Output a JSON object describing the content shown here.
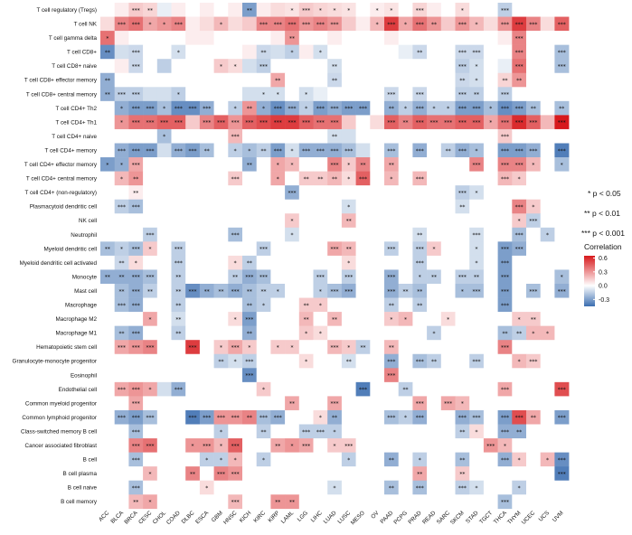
{
  "chart_data": {
    "type": "heatmap",
    "title": "",
    "xlabel": "",
    "ylabel": "",
    "columns": [
      "ACC",
      "BLCA",
      "BRCA",
      "CESC",
      "CHOL",
      "COAD",
      "DLBC",
      "ESCA",
      "GBM",
      "HNSC",
      "KICH",
      "KIRC",
      "KIRP",
      "LAML",
      "LGG",
      "LIHC",
      "LUAD",
      "LUSC",
      "MESO",
      "OV",
      "PAAD",
      "PCPG",
      "PRAD",
      "READ",
      "SARC",
      "SKCM",
      "STAD",
      "TGCT",
      "THCA",
      "THYM",
      "UCEC",
      "UCS",
      "UVM"
    ],
    "rows": [
      "T cell regulatory (Tregs)",
      "T cell NK",
      "T cell gamma delta",
      "T cell CD8+",
      "T cell CD8+ naive",
      "T cell CD8+ effector memory",
      "T cell CD8+ central memory",
      "T cell CD4+ Th2",
      "T cell CD4+ Th1",
      "T cell CD4+ naive",
      "T cell CD4+ memory",
      "T cell CD4+ effector memory",
      "T cell CD4+ central memory",
      "T cell CD4+ (non-regulatory)",
      "Plasmacytoid dendritic cell",
      "NK cell",
      "Neutrophil",
      "Myeloid dendritic cell",
      "Myeloid dendritic cell activated",
      "Monocyte",
      "Mast cell",
      "Macrophage",
      "Macrophage M2",
      "Macrophage M1",
      "Hematopoietic stem cell",
      "Granulocyte-monocyte progenitor",
      "Eosinophil",
      "Endothelial cell",
      "Common myeloid progenitor",
      "Common lymphoid progenitor",
      "Class-switched memory B cell",
      "Cancer associated fibroblast",
      "B cell",
      "B cell plasma",
      "B cell naive",
      "B cell memory"
    ],
    "legend": {
      "title": "Correlation",
      "ticks": [
        "0.6",
        "0.3",
        "0.0",
        "-0.3"
      ],
      "tick_values": [
        0.6,
        0.3,
        0.0,
        -0.3
      ],
      "range": [
        -0.45,
        0.65
      ],
      "colors": {
        "low": "#3b6eb0",
        "mid": "#ffffff",
        "high": "#d7191c"
      },
      "placement": "right"
    },
    "significance": [
      "* p < 0.05",
      "** p < 0.01",
      "*** p < 0.001"
    ],
    "star_symbols": [
      "",
      "*",
      "**",
      "***"
    ],
    "cells": [
      "0.00:0 0.05:0 0.15:3 0.12:2 -0.05:0 0.05:0 0.00:0 0.05:0 0.00:0 0.05:0 -0.30:2 0.05:0 0.10:0 0.08:1 0.15:3 0.12:1 0.10:1 0.08:1 0.00:0 0.05:1 0.08:1 0.00:0 0.12:3 0.05:0 0.00:0 0.10:1 0.00:0 0.00:0 -0.15:3 0.00:0 0.00:0 0.00:0 0.00:0",
      "0.10:0 0.35:3 0.40:3 0.25:1 0.30:1 0.35:3 0.05:0 0.10:0 0.20:1 0.10:0 0.15:0 0.35:3 0.35:3 0.40:3 0.30:3 0.35:3 0.30:3 0.15:0 0.05:0 0.20:1 0.55:3 0.25:1 0.40:3 0.30:2 0.15:0 0.30:3 0.20:1 0.10:0 0.30:3 0.55:3 0.35:3 0.10:0 0.45:3",
      "0.40:1 0.05:0 0.00:0 0.00:0 0.00:0 0.00:0 0.05:0 0.05:0 0.00:0 0.00:0 0.00:0 0.00:0 0.05:0 0.30:2 0.00:0 0.00:0 0.05:0 0.00:0 0.00:0 0.00:0 0.05:0 0.00:0 0.00:0 0.00:0 0.00:0 0.00:0 0.00:0 0.00:0 0.05:0 0.35:3 0.00:0 0.00:0 0.00:0",
      "-0.35:2 -0.10:0 -0.12:3 0.00:0 0.00:0 -0.10:1 0.00:0 0.00:0 0.00:0 0.00:0 0.05:0 -0.12:2 -0.10:0 -0.15:1 0.05:0 -0.10:1 0.00:0 0.00:0 0.00:0 0.00:0 0.00:0 -0.05:0 -0.12:2 0.00:0 0.00:0 -0.12:3 -0.12:3 0.00:0 0.00:0 0.35:3 0.00:0 0.00:0 -0.20:3",
      "0.00:0 0.05:0 -0.12:3 0.00:0 -0.15:0 0.00:0 0.00:0 0.00:0 0.15:1 0.10:1 -0.10:0 -0.15:3 0.00:0 0.00:0 0.00:0 0.00:0 -0.10:2 0.00:0 0.00:0 0.00:0 0.00:0 0.00:0 0.00:0 0.00:0 0.00:0 -0.15:3 -0.10:1 0.00:0 -0.05:0 0.40:3 0.00:0 0.00:0 -0.20:3",
      "-0.25:2 0.00:0 0.00:0 0.00:0 0.00:0 0.00:0 0.00:0 0.00:0 0.00:0 0.00:0 0.00:0 0.00:0 0.25:2 0.00:0 0.00:0 0.00:0 -0.12:2 0.00:0 0.00:0 0.00:0 0.00:0 0.00:0 0.00:0 0.00:0 0.00:0 -0.12:2 -0.10:1 0.00:0 0.12:2 0.30:2 0.00:0 0.00:0 0.00:0",
      "-0.25:2 -0.15:3 -0.15:3 -0.10:0 -0.10:0 -0.15:1 0.00:0 0.00:0 0.00:0 0.00:0 -0.10:0 -0.10:1 -0.10:1 0.00:0 -0.10:1 -0.05:0 0.00:0 0.00:0 0.00:0 0.00:0 -0.12:3 0.00:0 -0.12:3 0.00:0 0.00:0 -0.15:3 -0.15:2 0.00:0 -0.15:3 0.00:0 0.00:0 0.00:0 0.00:0",
      "0.00:0 -0.25:1 -0.30:3 -0.30:3 -0.20:1 -0.35:3 -0.35:3 -0.25:3 0.00:0 -0.15:1 0.30:2 -0.25:1 -0.35:3 -0.25:3 -0.15:1 -0.30:3 -0.25:3 -0.30:3 -0.30:3 0.00:0 -0.25:2 -0.15:1 -0.25:3 -0.15:1 -0.15:1 -0.30:3 -0.30:3 -0.20:1 -0.35:3 -0.30:3 -0.20:2 0.00:0 -0.20:2",
      "0.00:0 0.30:1 0.40:3 0.40:3 0.45:3 0.45:3 0.15:0 0.35:3 0.45:3 0.30:3 0.45:3 0.50:3 0.55:3 0.55:3 0.45:3 0.40:3 0.40:3 0.15:0 0.00:0 0.10:0 0.45:3 0.35:2 0.45:3 0.40:3 0.40:3 0.45:3 0.45:3 0.25:1 0.40:3 0.60:3 0.45:3 0.20:0 0.65:3",
      "0.00:0 0.00:0 0.00:0 0.00:0 -0.20:1 0.00:0 0.00:0 0.00:0 0.00:0 0.20:3 0.00:0 0.00:0 0.00:0 0.00:0 0.00:0 0.00:0 -0.10:2 -0.10:0 0.00:0 0.00:0 0.00:0 0.00:0 0.00:0 0.00:0 0.00:0 0.00:0 0.00:0 0.00:0 0.15:3 0.00:0 0.00:0 0.00:0 0.00:0",
      "0.00:0 -0.25:3 -0.30:3 -0.30:3 -0.10:0 -0.25:3 -0.30:3 -0.20:2 0.00:0 -0.15:1 -0.20:1 -0.15:2 -0.30:3 -0.10:1 -0.25:3 -0.25:3 -0.25:3 -0.20:3 -0.10:0 0.00:0 -0.20:3 0.00:0 -0.25:3 0.00:0 -0.15:2 -0.25:3 -0.20:1 0.00:0 -0.30:3 -0.30:3 -0.25:3 0.00:0 -0.40:3",
      "-0.30:1 -0.25:1 0.25:3 0.00:0 0.00:0 0.00:0 0.00:0 0.00:0 0.00:0 0.00:0 -0.25:2 0.00:0 0.25:1 0.20:1 0.00:0 0.00:0 0.35:3 0.15:1 0.35:2 0.00:0 0.25:2 0.00:0 0.00:0 0.00:0 0.00:0 0.00:0 0.35:3 0.00:0 0.35:3 0.35:3 0.20:1 0.00:0 -0.20:1",
      "0.00:0 0.20:1 0.30:2 0.00:0 0.00:0 0.00:0 0.00:0 0.00:0 0.00:0 0.15:3 0.00:0 0.00:0 0.25:1 0.00:0 0.15:2 0.15:2 0.20:2 0.10:1 0.45:3 0.00:0 0.20:1 0.00:0 0.20:3 0.00:0 0.00:0 0.00:0 0.00:0 0.00:0 0.20:3 0.15:1 0.00:0 0.00:0 0.00:0",
      "0.00:0 0.00:0 0.05:2 0.00:0 0.00:0 0.00:0 0.00:0 0.00:0 0.00:0 0.00:0 0.00:0 0.00:0 0.00:0 -0.25:3 0.00:0 0.00:0 0.00:0 0.00:0 0.00:0 0.00:0 0.00:0 0.00:0 0.00:0 0.00:0 0.00:0 -0.15:3 -0.10:1 0.00:0 0.00:0 0.00:0 0.00:0 0.00:0 0.00:0",
      "0.00:0 -0.15:3 -0.20:3 0.00:0 0.00:0 0.00:0 0.00:0 0.00:0 0.00:0 0.00:0 0.00:0 0.00:0 0.00:0 0.00:0 0.00:0 0.00:0 0.00:0 -0.10:1 0.00:0 0.00:0 0.00:0 0.00:0 0.00:0 0.00:0 0.00:0 -0.10:2 0.00:0 0.00:0 0.00:0 0.35:3 0.15:1 0.00:0 0.00:0",
      "0.00:0 0.00:0 0.00:0 0.00:0 0.00:0 0.00:0 0.00:0 0.00:0 0.00:0 0.00:0 0.00:0 0.00:0 0.00:0 0.15:1 0.00:0 0.00:0 0.00:0 0.20:2 0.00:0 0.00:0 0.00:0 0.00:0 0.00:0 0.00:0 0.00:0 0.00:0 0.00:0 0.00:0 0.00:0 0.15:1 -0.15:3 0.00:0 0.00:0",
      "0.00:0 0.00:0 0.00:0 -0.15:3 0.00:0 0.00:0 0.00:0 0.00:0 0.00:0 -0.20:3 0.00:0 0.00:0 0.00:0 -0.10:1 0.00:0 0.00:0 0.00:0 0.00:0 0.00:0 0.00:0 0.00:0 0.00:0 -0.10:2 0.00:0 0.00:0 0.00:0 -0.10:3 0.00:0 0.00:0 -0.20:3 0.00:0 -0.15:1 0.00:0",
      "-0.20:2 -0.15:1 -0.20:3 0.15:1 0.00:0 -0.15:3 0.00:0 0.00:0 0.00:0 0.00:0 0.00:0 -0.15:3 0.00:0 0.00:0 0.00:0 0.00:0 0.25:3 0.20:2 0.00:0 0.00:0 -0.15:3 0.00:0 -0.15:3 0.15:1 0.00:0 0.00:0 -0.10:1 0.00:0 -0.30:3 -0.25:3 0.00:0 0.00:0 0.00:0",
      "0.00:0 -0.12:2 0.10:1 0.00:0 0.00:0 -0.15:3 0.00:0 0.00:0 0.00:0 0.10:1 -0.15:2 0.00:0 0.00:0 0.00:0 0.00:0 0.00:0 0.00:0 0.10:1 0.00:0 0.00:0 0.00:0 0.00:0 -0.15:3 0.00:0 0.00:0 0.00:0 -0.10:1 0.00:0 -0.30:3 0.00:0 0.00:0 0.00:0 0.00:0",
      "-0.25:2 -0.25:2 -0.25:3 -0.20:3 0.00:0 -0.15:2 0.00:0 0.00:0 0.00:0 -0.15:2 -0.25:3 -0.20:3 0.00:0 0.00:0 0.00:0 -0.15:3 0.00:0 -0.15:3 0.00:0 0.00:0 -0.25:3 0.00:0 -0.15:1 -0.15:2 0.00:0 -0.15:3 -0.15:2 0.00:0 -0.30:3 0.00:0 0.00:0 0.00:0 -0.20:1",
      "0.00:0 -0.20:2 -0.25:3 -0.15:2 0.00:0 -0.15:2 -0.35:3 -0.25:2 -0.20:2 -0.25:3 -0.20:2 -0.15:2 -0.15:1 0.00:0 0.00:0 -0.15:1 -0.20:3 -0.25:3 0.00:0 0.00:0 -0.25:3 -0.15:2 -0.20:2 0.00:0 0.00:0 -0.20:1 -0.20:3 0.00:0 -0.30:3 0.00:0 -0.20:3 0.00:0 -0.25:3",
      "0.00:0 -0.20:3 -0.25:3 0.00:0 0.00:0 -0.15:2 0.00:0 0.00:0 0.00:0 0.00:0 -0.20:2 -0.15:1 0.00:0 0.00:0 0.15:2 0.15:1 0.00:0 0.00:0 0.00:0 0.00:0 -0.15:2 0.00:0 -0.15:2 0.00:0 0.00:0 0.00:0 0.00:0 0.00:0 -0.30:3 0.00:0 0.00:0 0.00:0 0.00:0",
      "0.00:0 0.00:0 0.00:0 0.25:1 0.00:0 -0.10:2 0.00:0 0.00:0 0.00:0 0.10:1 -0.30:3 0.00:0 0.00:0 0.00:0 0.20:2 0.00:0 0.20:2 0.00:0 0.00:0 0.00:0 0.15:1 0.20:1 0.00:0 0.00:0 0.10:1 0.00:0 0.00:0 0.00:0 0.00:0 0.15:1 0.15:2 0.00:0 0.00:0",
      "0.00:0 -0.20:2 -0.25:3 0.00:0 0.00:0 -0.15:2 0.00:0 0.00:0 0.00:0 0.00:0 -0.25:2 0.00:0 0.00:0 0.00:0 0.15:1 0.10:1 0.00:0 0.00:0 0.00:0 0.00:0 0.00:0 0.00:0 0.00:0 -0.15:1 0.00:0 0.00:0 0.00:0 0.00:0 -0.20:2 -0.15:2 0.20:1 0.20:1 0.00:0",
      "0.00:0 0.25:3 0.30:3 0.35:3 0.00:0 0.00:0 0.55:3 0.00:0 0.15:1 0.25:3 0.15:1 0.00:0 0.15:1 0.15:1 0.00:0 0.00:0 0.20:3 0.15:1 -0.15:2 0.00:0 0.20:2 0.00:0 0.00:0 0.00:0 0.00:0 0.00:0 0.00:0 0.00:0 0.35:3 0.00:0 0.00:0 0.00:0 0.00:0",
      "0.00:0 0.00:0 0.00:0 0.00:0 0.00:0 0.00:0 0.00:0 0.00:0 -0.15:2 -0.10:1 -0.15:3 0.00:0 0.00:0 0.00:0 0.10:1 0.00:0 0.00:0 -0.10:2 0.00:0 0.00:0 -0.25:3 0.00:0 -0.20:3 -0.15:2 0.00:0 0.00:0 -0.15:3 0.00:0 0.00:0 0.20:1 0.15:3 0.00:0 0.00:0",
      "0.00:0 0.00:0 0.00:0 0.00:0 0.00:0 0.00:0 0.00:0 0.00:0 0.00:0 0.00:0 -0.35:3 0.00:0 0.00:0 0.00:0 0.00:0 0.00:0 0.00:0 0.00:0 0.00:0 0.00:0 0.35:3 0.00:0 0.00:0 0.00:0 0.00:0 0.00:0 0.00:0 0.00:0 0.00:0 0.00:0 0.00:0 0.00:0 0.00:0",
      "0.00:0 0.25:3 0.30:3 0.25:1 -0.10:0 -0.25:3 0.00:0 0.00:0 0.00:0 0.00:0 0.00:0 0.15:1 0.00:0 0.00:0 0.00:0 0.00:0 0.00:0 0.00:0 -0.40:3 0.00:0 0.00:0 -0.15:2 0.00:0 0.00:0 0.00:0 0.00:0 0.00:0 0.00:0 0.25:3 0.00:0 0.00:0 0.00:0 0.50:3",
      "0.00:0 0.00:0 0.25:3 0.00:0 0.00:0 0.00:0 0.00:0 0.00:0 0.00:0 0.00:0 0.00:0 0.00:0 0.00:0 0.25:2 0.00:0 0.00:0 0.25:3 0.00:0 0.00:0 0.00:0 0.00:0 0.00:0 0.25:3 0.00:0 0.25:3 0.20:1 0.00:0 0.00:0 0.00:0 0.00:0 0.00:0 0.00:0 0.00:0",
      "0.00:0 -0.25:3 -0.30:3 -0.20:3 0.00:0 0.00:0 -0.40:3 -0.30:3 0.30:3 0.30:3 0.35:2 -0.20:3 -0.25:3 0.00:0 0.00:0 0.10:1 -0.25:2 0.00:0 0.00:0 0.00:0 -0.20:3 -0.15:1 -0.25:3 0.00:0 0.00:0 -0.25:3 -0.20:3 0.00:0 -0.30:3 0.50:3 0.25:2 0.00:0 -0.30:3",
      "0.00:0 0.00:0 -0.20:3 0.00:0 0.00:0 0.00:0 0.00:0 0.00:0 -0.15:1 0.00:0 0.00:0 -0.15:2 0.00:0 0.00:0 -0.15:3 -0.15:3 -0.15:1 0.00:0 0.00:0 0.00:0 0.00:0 0.00:0 0.00:0 0.00:0 0.00:0 -0.15:2 0.10:1 0.00:0 -0.25:3 -0.25:2 0.00:0 0.00:0 0.00:0",
      "0.00:0 0.00:0 0.35:3 0.40:3 0.00:0 0.00:0 0.30:1 0.30:3 0.20:1 0.45:3 0.00:0 0.00:0 0.25:2 0.30:1 0.25:3 0.00:0 0.15:1 0.15:3 0.00:0 0.00:0 0.00:0 0.00:0 0.00:0 0.00:0 0.00:0 0.00:0 0.00:0 0.30:3 0.20:1 0.00:0 0.00:0 0.00:0 0.00:0",
      "0.00:0 0.00:0 -0.20:3 0.00:0 0.00:0 0.00:0 0.00:0 -0.15:1 -0.15:1 0.20:1 0.00:0 -0.15:1 0.00:0 0.00:0 0.00:0 0.00:0 0.00:0 -0.15:1 0.00:0 0.00:0 -0.25:2 0.00:0 -0.15:1 0.00:0 0.00:0 -0.20:2 0.00:0 0.00:0 -0.25:3 0.15:1 0.00:0 0.20:1 -0.35:3",
      "0.00:0 0.00:0 0.00:0 0.20:1 0.00:0 0.00:0 0.35:2 0.00:0 0.35:3 0.30:3 0.00:0 0.00:0 0.00:0 0.00:0 0.00:0 0.00:0 0.00:0 0.00:0 0.00:0 0.00:0 0.00:0 0.00:0 0.25:2 0.00:0 0.00:0 0.15:2 0.00:0 0.00:0 0.00:0 0.00:0 0.00:0 0.00:0 -0.40:3",
      "0.00:0 0.00:0 -0.20:3 0.00:0 0.00:0 0.00:0 0.00:0 0.10:1 0.00:0 0.00:0 0.00:0 0.00:0 0.00:0 0.00:0 0.00:0 0.00:0 -0.10:1 0.00:0 0.00:0 0.00:0 -0.20:2 0.00:0 -0.20:3 0.00:0 0.00:0 -0.15:3 -0.10:1 0.00:0 0.00:0 -0.15:1 0.00:0 0.00:0 0.00:0",
      "0.00:0 0.00:0 0.20:2 0.25:1 0.00:0 0.00:0 0.00:0 0.00:0 0.00:0 0.20:3 0.00:0 0.00:0 0.30:2 0.30:2 0.00:0 0.00:0 0.00:0 0.00:0 0.00:0 0.00:0 0.00:0 0.00:0 0.00:0 0.00:0 0.00:0 0.00:0 0.00:0 0.00:0 -0.20:3 0.00:0 0.00:0 0.00:0 0.00:0"
    ]
  }
}
